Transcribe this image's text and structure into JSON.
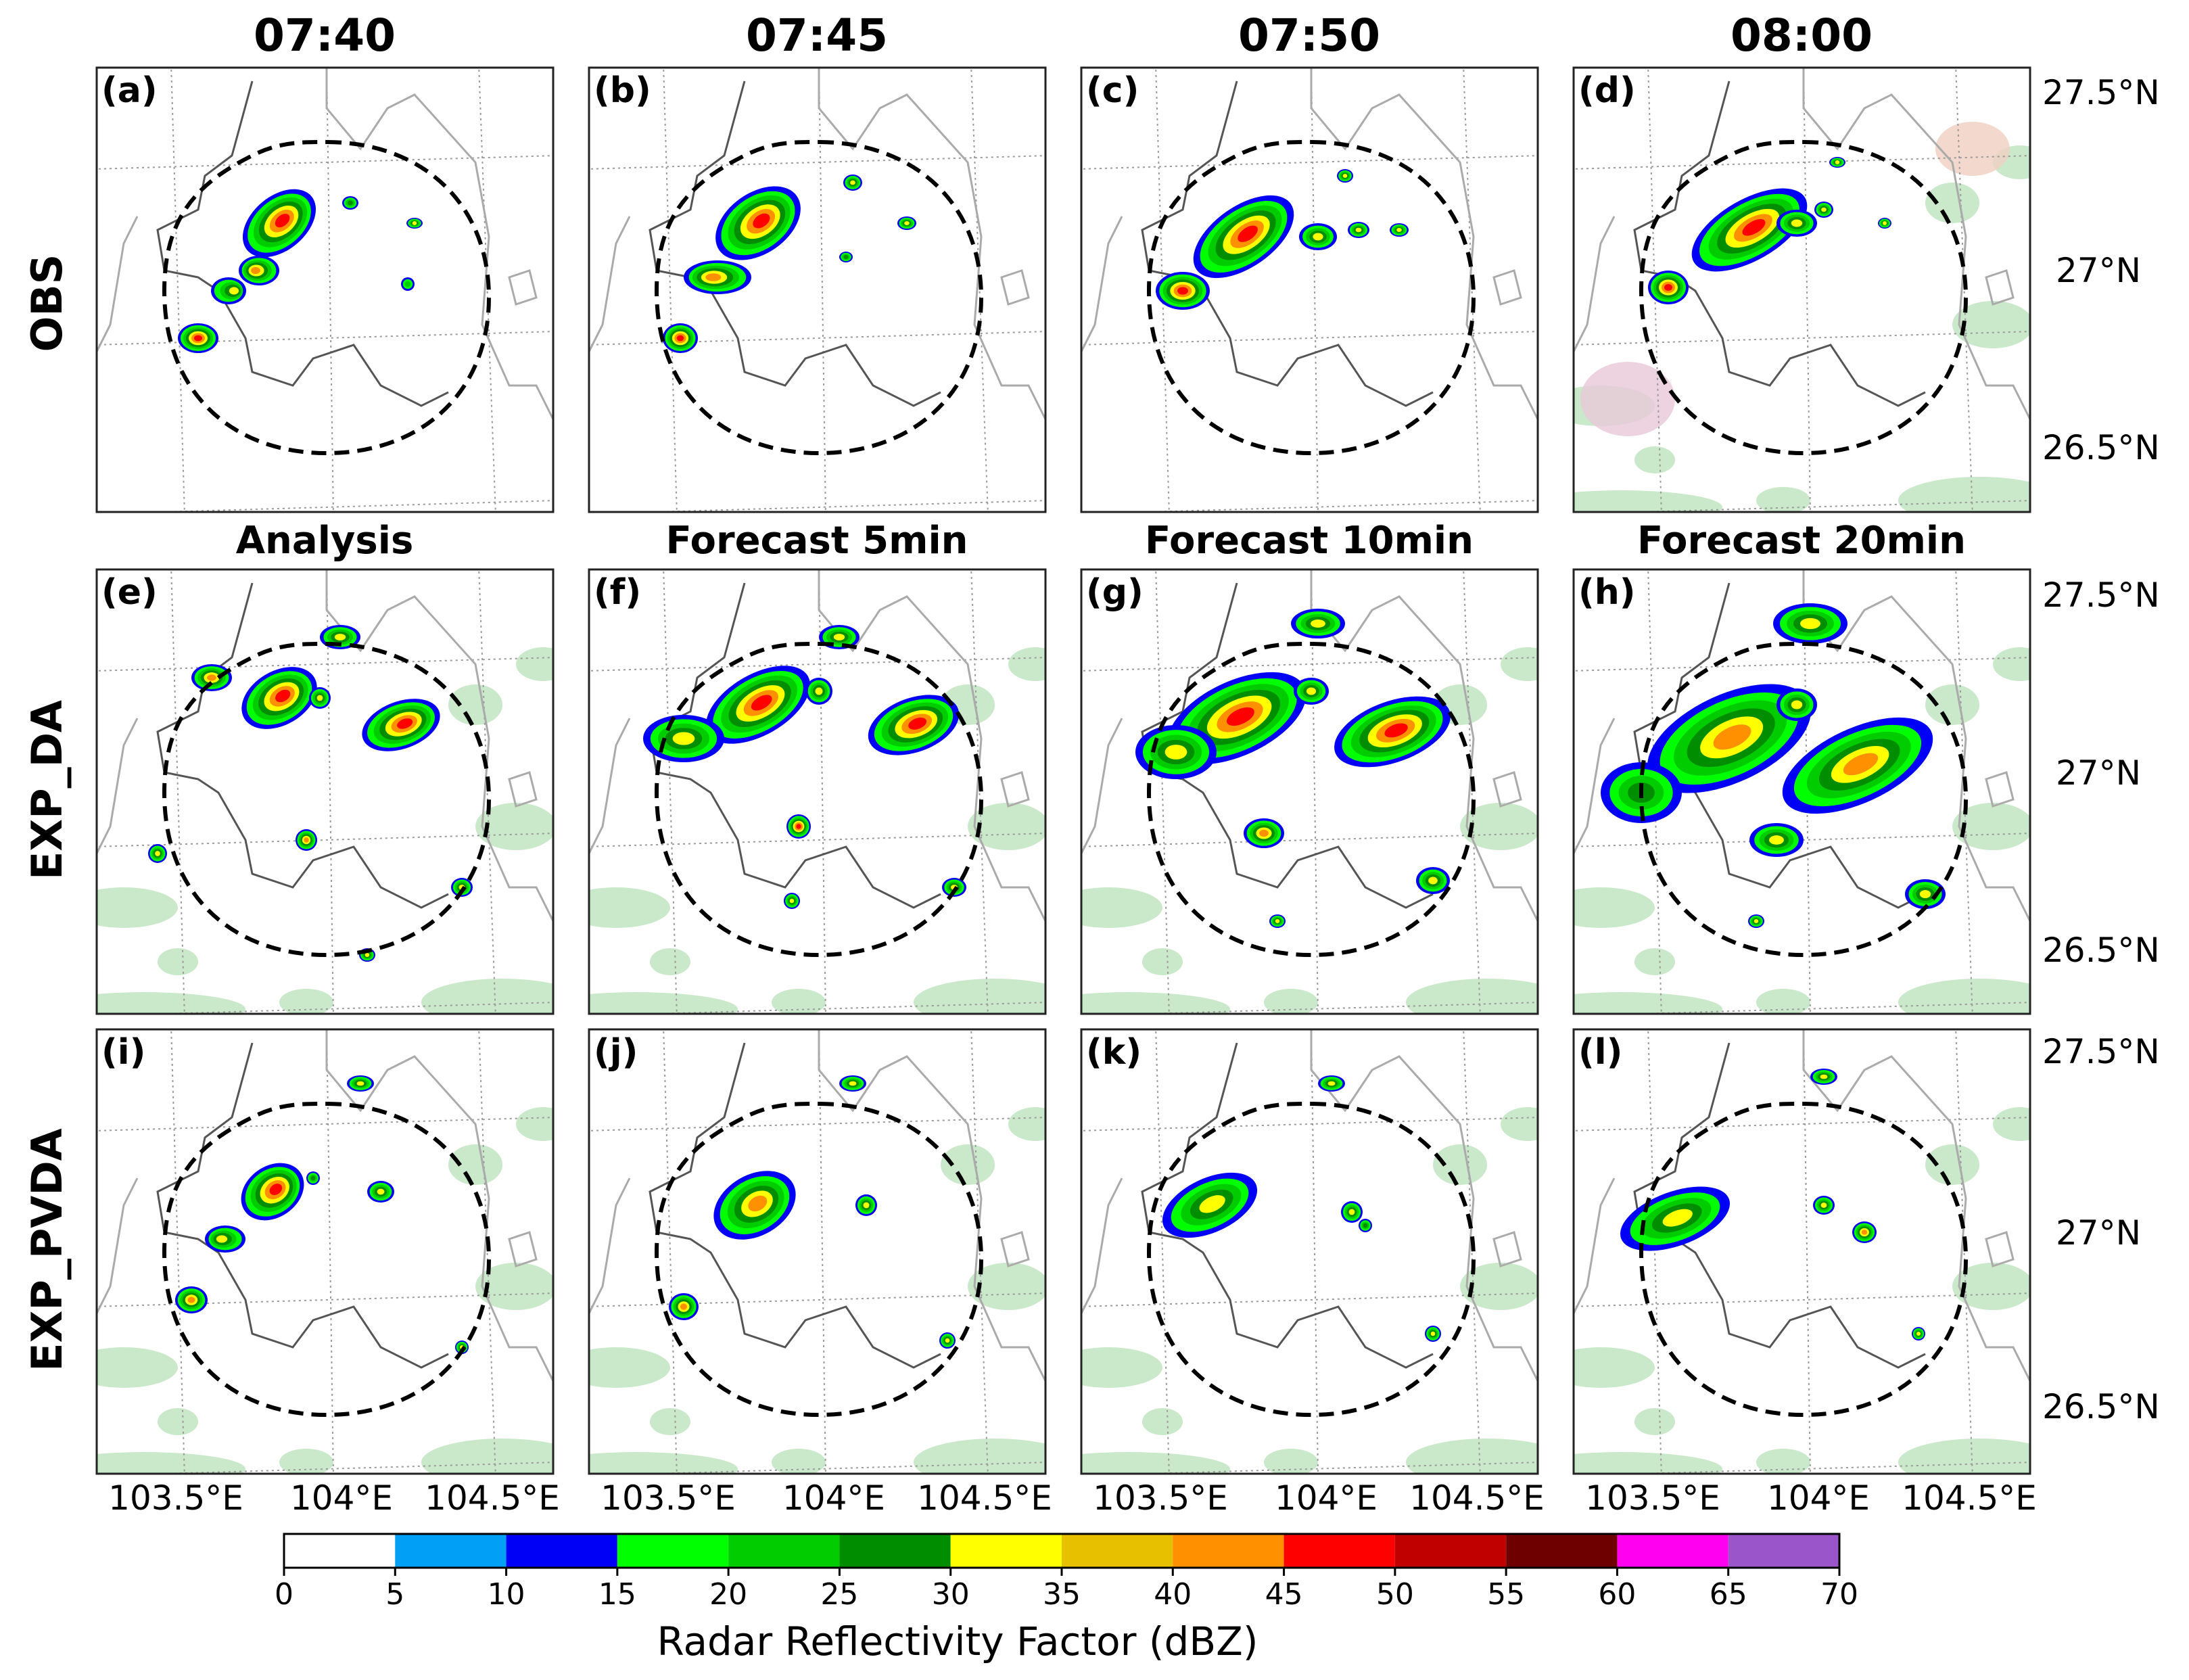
{
  "column_times": [
    "07:40",
    "07:45",
    "07:50",
    "08:00"
  ],
  "row_labels": [
    "OBS",
    "EXP_DA",
    "EXP_PVDA"
  ],
  "forecast_labels": [
    "Analysis",
    "Forecast 5min",
    "Forecast 10min",
    "Forecast 20min"
  ],
  "panel_labels": [
    "(a)",
    "(b)",
    "(c)",
    "(d)",
    "(e)",
    "(f)",
    "(g)",
    "(h)",
    "(i)",
    "(j)",
    "(k)",
    "(l)"
  ],
  "latitude_labels": [
    "27.5°N",
    "27°N",
    "26.5°N"
  ],
  "longitude_labels": [
    "103.5°E",
    "104°E",
    "104.5°E"
  ],
  "colorbar": {
    "title": "Radar Reflectivity Factor (dBZ)",
    "ticks": [
      "0",
      "5",
      "10",
      "15",
      "20",
      "25",
      "30",
      "35",
      "40",
      "45",
      "50",
      "55",
      "60",
      "65",
      "70"
    ],
    "colors": [
      "#ffffff",
      "#01a0f6",
      "#0000f6",
      "#00ff00",
      "#00cc00",
      "#008e00",
      "#ffff00",
      "#e7c000",
      "#ff9000",
      "#ff0000",
      "#c00000",
      "#6e0000",
      "#ff00f0",
      "#9955c9"
    ]
  },
  "colors": {
    "radar_range": "#000000",
    "boundary": "#555555",
    "gridline": "#999999",
    "background_echo": "#b8e0b8"
  }
}
